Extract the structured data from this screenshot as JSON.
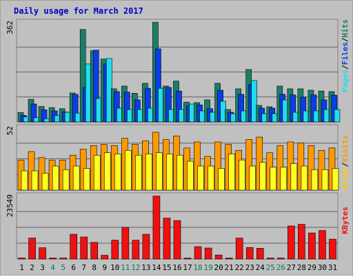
{
  "chart_data": {
    "type": "bar",
    "title": "Daily usage for March 2017",
    "categories": [
      "1",
      "2",
      "3",
      "4",
      "5",
      "6",
      "7",
      "8",
      "9",
      "10",
      "11",
      "12",
      "13",
      "14",
      "15",
      "16",
      "17",
      "18",
      "19",
      "20",
      "21",
      "22",
      "23",
      "24",
      "25",
      "26",
      "27",
      "28",
      "29",
      "30",
      "31"
    ],
    "weekend_days": [
      "4",
      "5",
      "11",
      "12",
      "18",
      "19",
      "25",
      "26"
    ],
    "panels": [
      {
        "id": "hits",
        "ymax_label": "362",
        "ymax": 362,
        "series": [
          {
            "name": "Hits",
            "color": "#1a7f66",
            "values": [
              34,
              82,
              56,
              52,
              48,
              105,
              335,
              258,
              228,
              120,
              130,
              104,
              140,
              361,
              130,
              148,
              72,
              70,
              80,
              140,
              45,
              120,
              190,
              60,
              55,
              130,
              120,
              120,
              115,
              112,
              110
            ]
          },
          {
            "name": "Files",
            "color": "#0a3ee6",
            "values": [
              24,
              65,
              44,
              40,
              36,
              100,
              125,
              260,
              210,
              110,
              108,
              80,
              122,
              265,
              125,
              112,
              58,
              62,
              48,
              115,
              35,
              100,
              135,
              50,
              50,
              100,
              98,
              90,
              98,
              80,
              97
            ]
          },
          {
            "name": "Pages",
            "color": "#22ddee",
            "values": [
              18,
              16,
              12,
              23,
              35,
              32,
              210,
              85,
              230,
              50,
              45,
              45,
              50,
              122,
              45,
              45,
              65,
              40,
              35,
              75,
              30,
              40,
              150,
              30,
              30,
              80,
              35,
              40,
              40,
              45,
              45
            ]
          }
        ]
      },
      {
        "id": "visits",
        "ymax_label": "52",
        "ymax": 52,
        "series": [
          {
            "name": "Visits",
            "color": "#ff9900",
            "values": [
              25,
              32,
              27,
              25,
              25,
              29,
              34,
              37,
              38,
              37,
              43,
              38,
              41,
              48,
              42,
              45,
              35,
              40,
              28,
              40,
              38,
              33,
              42,
              44,
              31,
              37,
              40,
              39,
              37,
              33,
              35
            ]
          },
          {
            "name": "Sites",
            "color": "#ffff22",
            "values": [
              16,
              16,
              14,
              20,
              17,
              20,
              18,
              29,
              31,
              30,
              33,
              29,
              30,
              31,
              30,
              29,
              24,
              20,
              20,
              18,
              30,
              25,
              20,
              23,
              19,
              19,
              22,
              20,
              17,
              17,
              18
            ]
          }
        ]
      },
      {
        "id": "kbytes",
        "ymax_label": "23549",
        "ymax": 23549,
        "series": [
          {
            "name": "KBytes",
            "color": "#ee1111",
            "values": [
              400,
              7800,
              4200,
              0,
              0,
              9200,
              8200,
              6200,
              1400,
              7000,
              11800,
              7000,
              9200,
              23400,
              15200,
              14300,
              0,
              4600,
              4100,
              1500,
              0,
              7800,
              4300,
              4000,
              0,
              0,
              12300,
              12900,
              9700,
              10600,
              7400
            ]
          }
        ]
      }
    ],
    "legend": {
      "hits": [
        "Pages",
        "/",
        "Files",
        "/",
        "Hits"
      ],
      "visits": [
        "Sites",
        "/",
        "Visits"
      ],
      "kbytes": [
        "KBytes"
      ]
    },
    "colors": {
      "title": "#0000cc",
      "weekday_label": "#000000",
      "weekend_label": "#00805a",
      "panel_bg": "#c0c0c0",
      "frame_bg": "#c0c0c0",
      "grid": "#606060",
      "slash": "#000000",
      "legend_pages": "#22ddee",
      "legend_files": "#0a3ee6",
      "legend_hits": "#1a7f66",
      "legend_sites": "#ffcc00",
      "legend_visits": "#ff9900",
      "legend_kbytes": "#ee1111"
    }
  }
}
